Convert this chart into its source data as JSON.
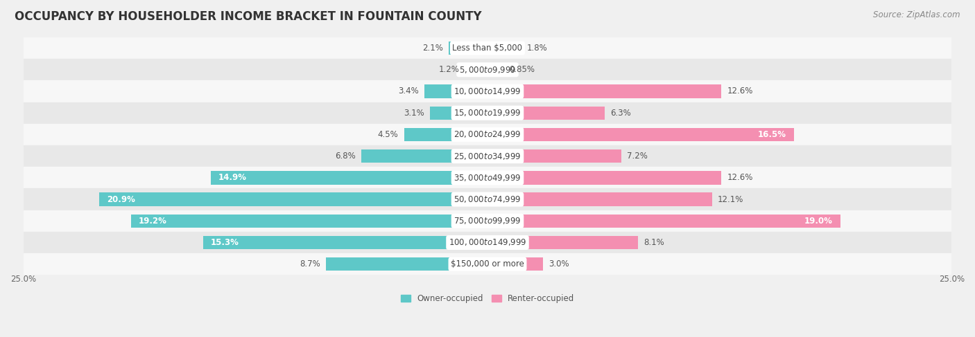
{
  "title": "OCCUPANCY BY HOUSEHOLDER INCOME BRACKET IN FOUNTAIN COUNTY",
  "source": "Source: ZipAtlas.com",
  "categories": [
    "Less than $5,000",
    "$5,000 to $9,999",
    "$10,000 to $14,999",
    "$15,000 to $19,999",
    "$20,000 to $24,999",
    "$25,000 to $34,999",
    "$35,000 to $49,999",
    "$50,000 to $74,999",
    "$75,000 to $99,999",
    "$100,000 to $149,999",
    "$150,000 or more"
  ],
  "owner_values": [
    2.1,
    1.2,
    3.4,
    3.1,
    4.5,
    6.8,
    14.9,
    20.9,
    19.2,
    15.3,
    8.7
  ],
  "renter_values": [
    1.8,
    0.85,
    12.6,
    6.3,
    16.5,
    7.2,
    12.6,
    12.1,
    19.0,
    8.1,
    3.0
  ],
  "owner_color": "#5EC8C8",
  "renter_color": "#F48FB1",
  "owner_label": "Owner-occupied",
  "renter_label": "Renter-occupied",
  "bar_height": 0.62,
  "xlim": 25.0,
  "background_color": "#f0f0f0",
  "row_bg_light": "#f7f7f7",
  "row_bg_dark": "#e8e8e8",
  "title_fontsize": 12,
  "label_fontsize": 8.5,
  "source_fontsize": 8.5,
  "cat_label_fontsize": 8.5,
  "value_fontsize": 8.5
}
